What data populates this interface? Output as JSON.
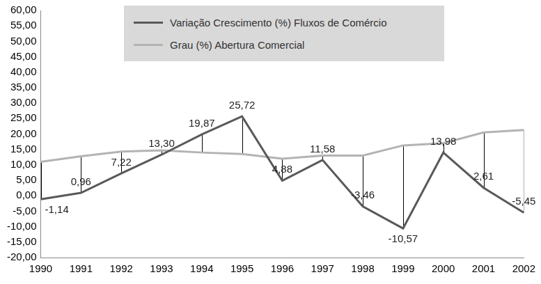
{
  "chart_data": {
    "type": "line",
    "categories": [
      "1990",
      "1991",
      "1992",
      "1993",
      "1994",
      "1995",
      "1996",
      "1997",
      "1998",
      "1999",
      "2000",
      "2001",
      "2002"
    ],
    "series": [
      {
        "name": "Variação Crescimento (%) Fluxos de Comércio",
        "color": "#595959",
        "values": [
          -1.14,
          0.96,
          7.22,
          13.3,
          19.87,
          25.72,
          4.88,
          11.58,
          -3.46,
          -10.57,
          13.98,
          2.61,
          -5.45
        ],
        "value_labels": [
          "-1,14",
          "0,96",
          "7,22",
          "13,30",
          "19,87",
          "25,72",
          "4,88",
          "11,58",
          "-3,46",
          "-10,57",
          "13,98",
          "2,61",
          "-5,45"
        ],
        "data_labels": true
      },
      {
        "name": "Grau (%) Abertura Comercial",
        "color": "#b3b3b3",
        "values": [
          11.0,
          12.8,
          14.3,
          14.7,
          14.0,
          13.5,
          12.0,
          13.0,
          13.0,
          16.3,
          17.0,
          20.5,
          21.3
        ]
      }
    ],
    "ylim": [
      -20,
      60
    ],
    "yticks": [
      {
        "value": -20,
        "label": "-20,00"
      },
      {
        "value": -15,
        "label": "-15,00"
      },
      {
        "value": -10,
        "label": "-10,00"
      },
      {
        "value": -5,
        "label": "-5,00"
      },
      {
        "value": 0,
        "label": "0,00"
      },
      {
        "value": 5,
        "label": "5,00"
      },
      {
        "value": 10,
        "label": "10,00"
      },
      {
        "value": 15,
        "label": "15,00"
      },
      {
        "value": 20,
        "label": "20,00"
      },
      {
        "value": 25,
        "label": "25,00"
      },
      {
        "value": 30,
        "label": "30,00"
      },
      {
        "value": 35,
        "label": "35,00"
      },
      {
        "value": 40,
        "label": "40,00"
      },
      {
        "value": 45,
        "label": "45,00"
      },
      {
        "value": 50,
        "label": "50,00"
      },
      {
        "value": 55,
        "label": "55,00"
      },
      {
        "value": 60,
        "label": "60,00"
      }
    ],
    "grid": false,
    "legend": "top"
  }
}
